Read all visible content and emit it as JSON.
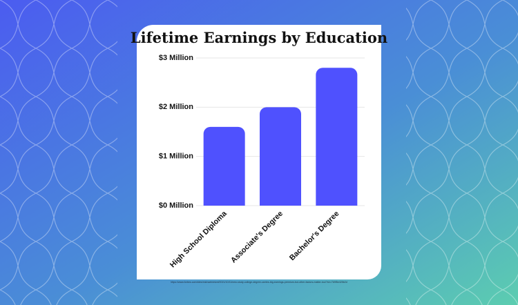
{
  "chart_data": {
    "type": "bar",
    "title": "Lifetime Earnings by Education",
    "categories": [
      "High School Diploma",
      "Associate's Degree",
      "Bachelor's Degree"
    ],
    "values": [
      1.6,
      2.0,
      2.8
    ],
    "color": "#4f51fe",
    "ylim": [
      0,
      3
    ],
    "yticks": [
      {
        "value": 0,
        "label": "$0 Million"
      },
      {
        "value": 1,
        "label": "$1 Million"
      },
      {
        "value": 2,
        "label": "$2 Million"
      },
      {
        "value": 3,
        "label": "$3 Million"
      }
    ],
    "grid": true,
    "source": "https://www.forbes.com/sites/michaelnietzel/2021/10/11/new-study-college-degree-carries-big-earnings-premium-but-other-factors-matter-too/?sh=7b9f5e425b2d"
  }
}
